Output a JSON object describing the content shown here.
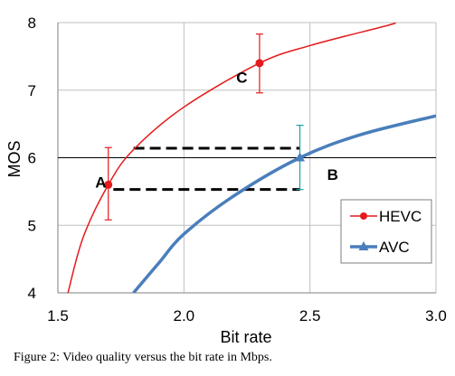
{
  "caption": "Figure 2: Video quality versus the bit rate in Mbps.",
  "chart_data": {
    "type": "line",
    "title": "",
    "xlabel": "Bit rate",
    "ylabel": "MOS",
    "xlim": [
      1.5,
      3.0
    ],
    "ylim": [
      4,
      8
    ],
    "xticks": [
      1.5,
      2.0,
      2.5,
      3.0
    ],
    "xtick_labels": [
      "1.5",
      "2.0",
      "2.5",
      "3.0"
    ],
    "yticks": [
      4,
      5,
      6,
      7,
      8
    ],
    "ytick_labels": [
      "4",
      "5",
      "6",
      "7",
      "8"
    ],
    "grid": true,
    "legend_position": "right",
    "reference_line_y": 6,
    "colors": {
      "HEVC": "#e41a1c",
      "AVC": "#4a7ebb",
      "error_B": "#1aa3a3",
      "grid": "#bfbfbf"
    },
    "series": [
      {
        "name": "HEVC",
        "marker": "circle",
        "curve": [
          [
            1.54,
            4.0
          ],
          [
            1.6,
            4.82
          ],
          [
            1.7,
            5.6
          ],
          [
            1.8,
            6.12
          ],
          [
            2.0,
            6.75
          ],
          [
            2.3,
            7.4
          ],
          [
            2.5,
            7.66
          ],
          [
            2.8,
            7.95
          ],
          [
            2.84,
            8.0
          ]
        ],
        "points": [
          {
            "x": 1.7,
            "y": 5.6,
            "err_low": 5.08,
            "err_high": 6.15
          },
          {
            "x": 2.3,
            "y": 7.4,
            "err_low": 6.96,
            "err_high": 7.83
          }
        ]
      },
      {
        "name": "AVC",
        "marker": "triangle",
        "curve": [
          [
            1.8,
            4.0
          ],
          [
            1.9,
            4.44
          ],
          [
            2.0,
            4.87
          ],
          [
            2.2,
            5.44
          ],
          [
            2.46,
            6.0
          ],
          [
            2.7,
            6.34
          ],
          [
            3.0,
            6.62
          ]
        ],
        "points": [
          {
            "x": 2.46,
            "y": 6.0,
            "err_low": 5.53,
            "err_high": 6.48
          }
        ]
      }
    ],
    "dashed_lines": [
      {
        "y": 6.14,
        "x_from": 1.8,
        "x_to": 2.46
      },
      {
        "y": 5.53,
        "x_from": 1.72,
        "x_to": 2.46
      }
    ],
    "annotations": [
      {
        "text": "A",
        "x": 1.67,
        "y": 5.56
      },
      {
        "text": "B",
        "x": 2.59,
        "y": 5.67
      },
      {
        "text": "C",
        "x": 2.23,
        "y": 7.11
      }
    ]
  }
}
